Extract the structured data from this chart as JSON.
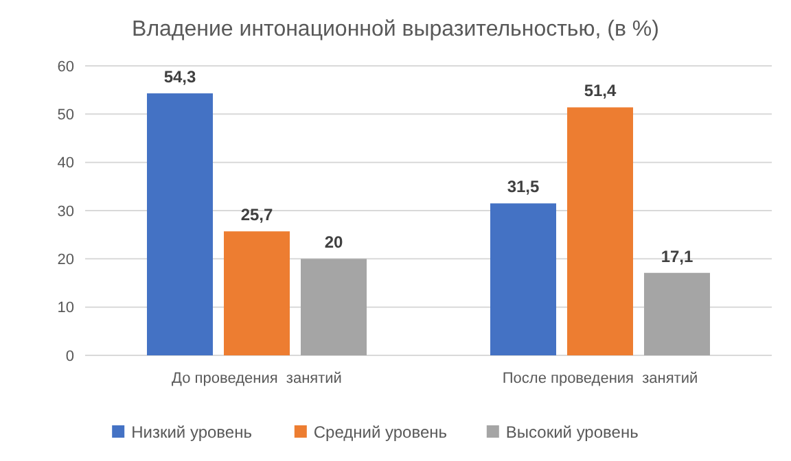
{
  "chart_data": {
    "type": "bar",
    "title": "Владение интонационной выразительностью, (в %)",
    "categories": [
      "До проведения  занятий",
      "После проведения  занятий"
    ],
    "series": [
      {
        "name": "Низкий уровень",
        "color": "#4472c4",
        "values": [
          54.3,
          31.5
        ],
        "value_labels": [
          "54,3",
          "31,5"
        ]
      },
      {
        "name": "Средний уровень",
        "color": "#ed7d31",
        "values": [
          25.7,
          51.4
        ],
        "value_labels": [
          "25,7",
          "51,4"
        ]
      },
      {
        "name": "Высокий уровень",
        "color": "#a5a5a5",
        "values": [
          20,
          17.1
        ],
        "value_labels": [
          "20",
          "17,1"
        ]
      }
    ],
    "ylim": [
      0,
      60
    ],
    "yticks": [
      0,
      10,
      20,
      30,
      40,
      50,
      60
    ],
    "grid": "y",
    "legend": "bottom"
  }
}
